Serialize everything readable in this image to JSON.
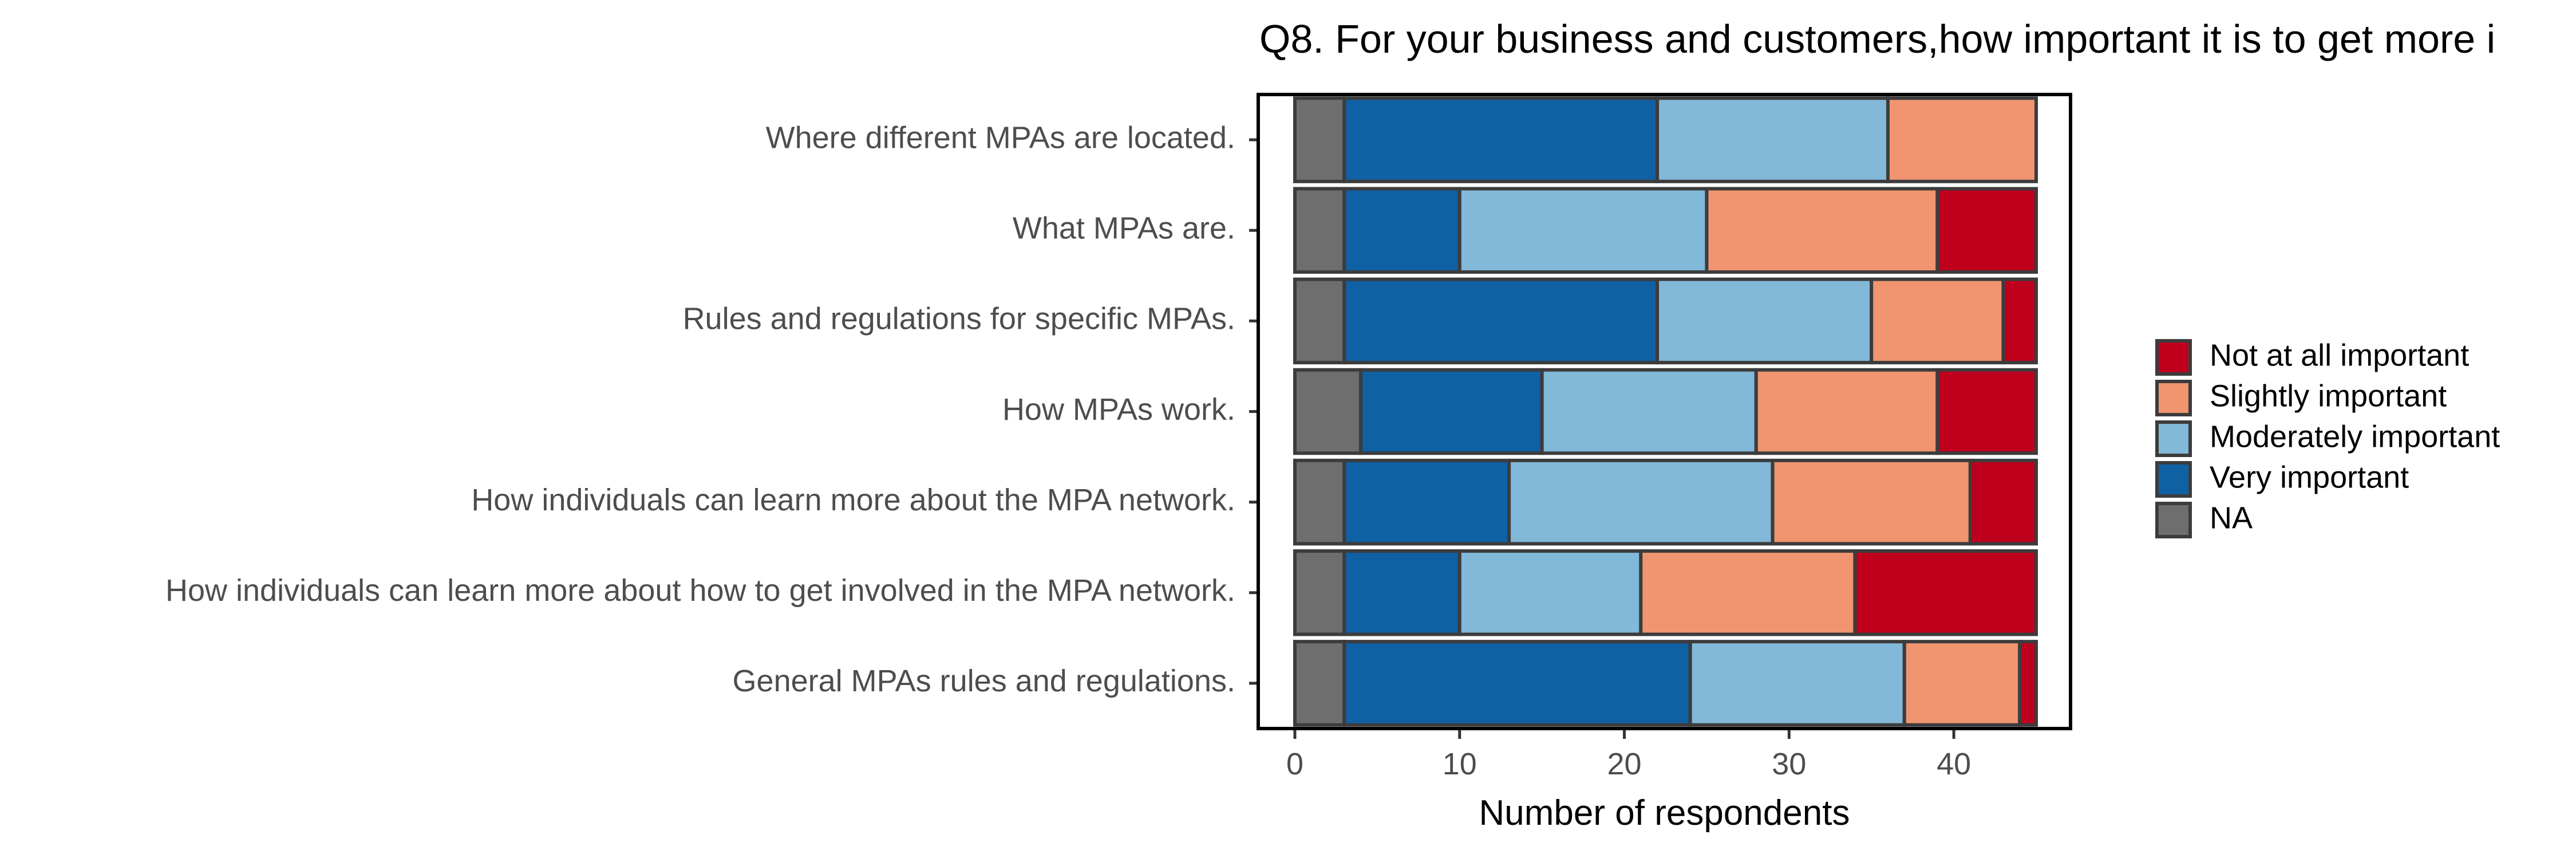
{
  "chart_data": {
    "type": "bar",
    "orientation": "horizontal",
    "stacked": true,
    "title": "Q8. For your business and customers,how important it is to get more i",
    "xlabel": "Number of respondents",
    "ylabel": "",
    "xlim": [
      0,
      45
    ],
    "xticks": [
      "0",
      "10",
      "20",
      "30",
      "40"
    ],
    "grid": false,
    "legend_position": "right",
    "categories": [
      "Where different MPAs are located.",
      "What MPAs are.",
      "Rules and regulations for specific MPAs.",
      "How MPAs work.",
      "How individuals can learn more about the MPA network.",
      "How individuals can learn more about how to get involved in the MPA network.",
      "General MPAs rules and regulations."
    ],
    "series": [
      {
        "name": "NA",
        "color": "#6e6e6e",
        "values": [
          3,
          3,
          3,
          4,
          3,
          3,
          3
        ]
      },
      {
        "name": "Very important",
        "color": "#1060a4",
        "values": [
          19,
          7,
          19,
          11,
          10,
          7,
          21
        ]
      },
      {
        "name": "Moderately important",
        "color": "#82b8d8",
        "values": [
          14,
          15,
          13,
          13,
          16,
          11,
          13
        ]
      },
      {
        "name": "Slightly important",
        "color": "#f0956f",
        "values": [
          9,
          14,
          8,
          11,
          12,
          13,
          7
        ]
      },
      {
        "name": "Not at all important",
        "color": "#bf001d",
        "values": [
          0,
          6,
          2,
          6,
          4,
          11,
          1
        ]
      }
    ],
    "legend_order": [
      "Not at all important",
      "Slightly important",
      "Moderately important",
      "Very important",
      "NA"
    ]
  }
}
